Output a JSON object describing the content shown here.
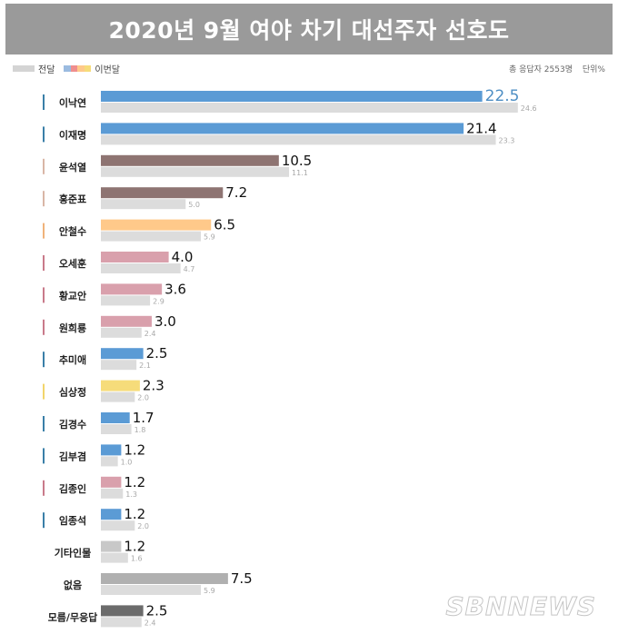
{
  "title": "2020년 9월 여야 차기 대선주자 선호도",
  "legend": {
    "prev_label": "전달",
    "now_label": "이번달",
    "now_swatch_colors": [
      "#9bbbe0",
      "#ef8e8e",
      "#ffc98a",
      "#f6dc7a"
    ]
  },
  "meta": {
    "respondents": "총 응답자 2553명",
    "unit": "단위%"
  },
  "watermark": "SBNNEWS",
  "chart_data": {
    "type": "bar",
    "orientation": "horizontal",
    "categories": [
      "이낙연",
      "이재명",
      "윤석열",
      "홍준표",
      "안철수",
      "오세훈",
      "황교안",
      "원희룡",
      "추미애",
      "심상정",
      "김경수",
      "김부겸",
      "김종인",
      "임종석",
      "기타인물",
      "없음",
      "모름/무응답"
    ],
    "series": [
      {
        "name": "이번달",
        "values": [
          22.5,
          21.4,
          10.5,
          7.2,
          6.5,
          4.0,
          3.6,
          3.0,
          2.5,
          2.3,
          1.7,
          1.2,
          1.2,
          1.2,
          1.2,
          7.5,
          2.5
        ]
      },
      {
        "name": "전달",
        "values": [
          24.6,
          23.3,
          11.1,
          5.0,
          5.9,
          4.7,
          2.9,
          2.4,
          2.1,
          2.0,
          1.8,
          1.0,
          1.3,
          2.0,
          1.6,
          5.9,
          2.4
        ]
      }
    ],
    "current_labels": [
      "22.5",
      "21.4",
      "10.5",
      "7.2",
      "6.5",
      "4.0",
      "3.6",
      "3.0",
      "2.5",
      "2.3",
      "1.7",
      "1.2",
      "1.2",
      "1.2",
      "1.2",
      "7.5",
      "2.5"
    ],
    "previous_labels": [
      "24.6",
      "23.3",
      "11.1",
      "5.0",
      "5.9",
      "4.7",
      "2.9",
      "2.4",
      "2.1",
      "2.0",
      "1.8",
      "1.0",
      "1.3",
      "2.0",
      "1.6",
      "5.9",
      "2.4"
    ],
    "bar_colors": [
      "#5b9bd5",
      "#5b9bd5",
      "#8e7472",
      "#8e7472",
      "#ffc98a",
      "#d9a0ac",
      "#d9a0ac",
      "#d9a0ac",
      "#5b9bd5",
      "#f6dc7a",
      "#5b9bd5",
      "#5b9bd5",
      "#d9a0ac",
      "#5b9bd5",
      "#c8c8c8",
      "#b0b0b0",
      "#6b6b6b"
    ],
    "marker_colors": [
      "#3a7fa8",
      "#3a7fa8",
      "#d9b6a6",
      "#d9b6a6",
      "#f0b27a",
      "#c97a8a",
      "#c97a8a",
      "#c97a8a",
      "#3a7fa8",
      "#f2d56b",
      "#3a7fa8",
      "#3a7fa8",
      "#c97a8a",
      "#3a7fa8",
      null,
      null,
      null
    ],
    "previous_color": "#dcdcdc",
    "highlight_label_color": "#4f8fc4",
    "xlim": [
      0,
      25
    ],
    "grid": false
  }
}
